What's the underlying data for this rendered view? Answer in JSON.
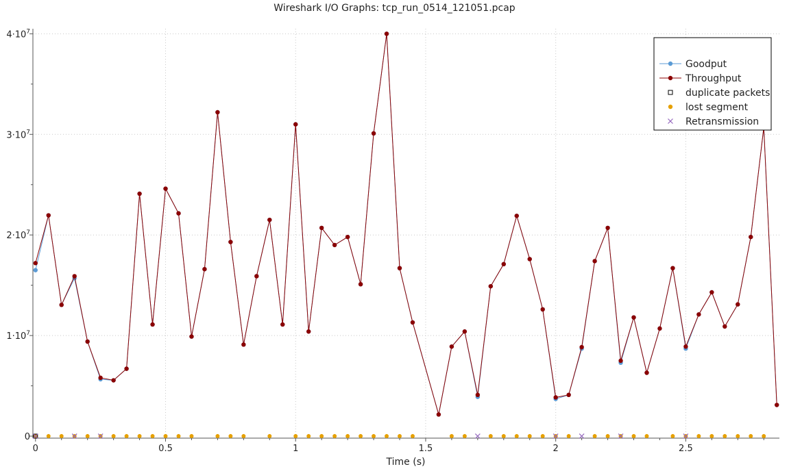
{
  "window": {
    "title": "Wireshark I/O Graphs: tcp_run_0514_121051.pcap"
  },
  "chart_data": {
    "type": "line",
    "title": "Wireshark I/O Graphs: tcp_run_0514_121051.pcap",
    "xlabel": "Time (s)",
    "ylabel": "",
    "xlim": [
      -0.01,
      2.86
    ],
    "ylim": [
      -200000.0,
      40500000.0
    ],
    "grid": true,
    "legend_position": "top-right",
    "x_ticks": [
      {
        "value": 0,
        "label": "0"
      },
      {
        "value": 0.5,
        "label": "0.5"
      },
      {
        "value": 1,
        "label": "1"
      },
      {
        "value": 1.5,
        "label": "1.5"
      },
      {
        "value": 2,
        "label": "2"
      },
      {
        "value": 2.5,
        "label": "2.5"
      }
    ],
    "y_ticks": [
      {
        "value": 0,
        "mantissa": "0",
        "exp": ""
      },
      {
        "value": 10000000,
        "mantissa": "1·10",
        "exp": "7"
      },
      {
        "value": 20000000,
        "mantissa": "2·10",
        "exp": "7"
      },
      {
        "value": 30000000,
        "mantissa": "3·10",
        "exp": "7"
      },
      {
        "value": 40000000,
        "mantissa": "4·10",
        "exp": "7"
      }
    ],
    "legend": [
      {
        "name": "Goodput",
        "marker": "circle-line",
        "color": "#5b9bd5"
      },
      {
        "name": "Throughput",
        "marker": "circle-line",
        "color": "#8b0000"
      },
      {
        "name": "duplicate packets",
        "marker": "square",
        "color": "#000000"
      },
      {
        "name": "lost segment",
        "marker": "dot",
        "color": "#e6a000"
      },
      {
        "name": "Retransmission",
        "marker": "x",
        "color": "#9467bd"
      }
    ],
    "x": [
      0,
      0.05,
      0.1,
      0.15,
      0.2,
      0.25,
      0.3,
      0.35,
      0.4,
      0.45,
      0.5,
      0.55,
      0.6,
      0.65,
      0.7,
      0.75,
      0.8,
      0.85,
      0.9,
      0.95,
      1.0,
      1.05,
      1.1,
      1.15,
      1.2,
      1.25,
      1.3,
      1.35,
      1.4,
      1.45,
      1.55,
      1.6,
      1.65,
      1.7,
      1.75,
      1.8,
      1.85,
      1.9,
      1.95,
      2.0,
      2.05,
      2.1,
      2.15,
      2.2,
      2.25,
      2.3,
      2.35,
      2.4,
      2.45,
      2.5,
      2.55,
      2.6,
      2.65,
      2.7,
      2.75,
      2.8,
      2.85
    ],
    "series": [
      {
        "name": "Goodput",
        "color": "#5b9bd5",
        "values": [
          16500000,
          21950000,
          13050000,
          15700000,
          9400000,
          5650000,
          5550000,
          6700000,
          24100000,
          11100000,
          24600000,
          22150000,
          9900000,
          16600000,
          32200000,
          19300000,
          9100000,
          15900000,
          21500000,
          11100000,
          31000000,
          10400000,
          20700000,
          19000000,
          19800000,
          15100000,
          30100000,
          40000000,
          16700000,
          11300000,
          2150000,
          8900000,
          10400000,
          3900000,
          14900000,
          17100000,
          21900000,
          17600000,
          12600000,
          3700000,
          4100000,
          8700000,
          17400000,
          20700000,
          7300000,
          11800000,
          6300000,
          10700000,
          16700000,
          8700000,
          12100000,
          14300000,
          10900000,
          13100000,
          19800000,
          30700000,
          3100000
        ]
      },
      {
        "name": "Throughput",
        "color": "#8b0000",
        "values": [
          17200000,
          21950000,
          13050000,
          15900000,
          9400000,
          5800000,
          5550000,
          6700000,
          24100000,
          11100000,
          24600000,
          22150000,
          9900000,
          16600000,
          32200000,
          19300000,
          9100000,
          15900000,
          21500000,
          11100000,
          31000000,
          10400000,
          20700000,
          19000000,
          19800000,
          15100000,
          30100000,
          40000000,
          16700000,
          11300000,
          2150000,
          8900000,
          10400000,
          4100000,
          14900000,
          17100000,
          21900000,
          17600000,
          12600000,
          3850000,
          4100000,
          8850000,
          17400000,
          20700000,
          7500000,
          11800000,
          6300000,
          10700000,
          16700000,
          8900000,
          12100000,
          14300000,
          10900000,
          13100000,
          19800000,
          30700000,
          3100000
        ]
      }
    ],
    "duplicate_packets": {
      "x": [
        0
      ],
      "values": [
        0
      ]
    },
    "lost_segment": {
      "x": [
        0,
        0.05,
        0.1,
        0.15,
        0.2,
        0.25,
        0.3,
        0.35,
        0.4,
        0.45,
        0.5,
        0.55,
        0.6,
        0.7,
        0.75,
        0.8,
        0.9,
        1.0,
        1.05,
        1.1,
        1.15,
        1.2,
        1.25,
        1.3,
        1.35,
        1.4,
        1.45,
        1.6,
        1.65,
        1.75,
        1.8,
        1.85,
        1.9,
        1.95,
        2.0,
        2.05,
        2.15,
        2.2,
        2.25,
        2.3,
        2.35,
        2.45,
        2.5,
        2.55,
        2.6,
        2.65,
        2.7,
        2.75,
        2.8
      ],
      "values": [
        0
      ]
    },
    "retransmission": {
      "x": [
        0,
        0.15,
        0.25,
        1.7,
        2.0,
        2.1,
        2.25,
        2.5
      ],
      "values": [
        0
      ]
    }
  }
}
